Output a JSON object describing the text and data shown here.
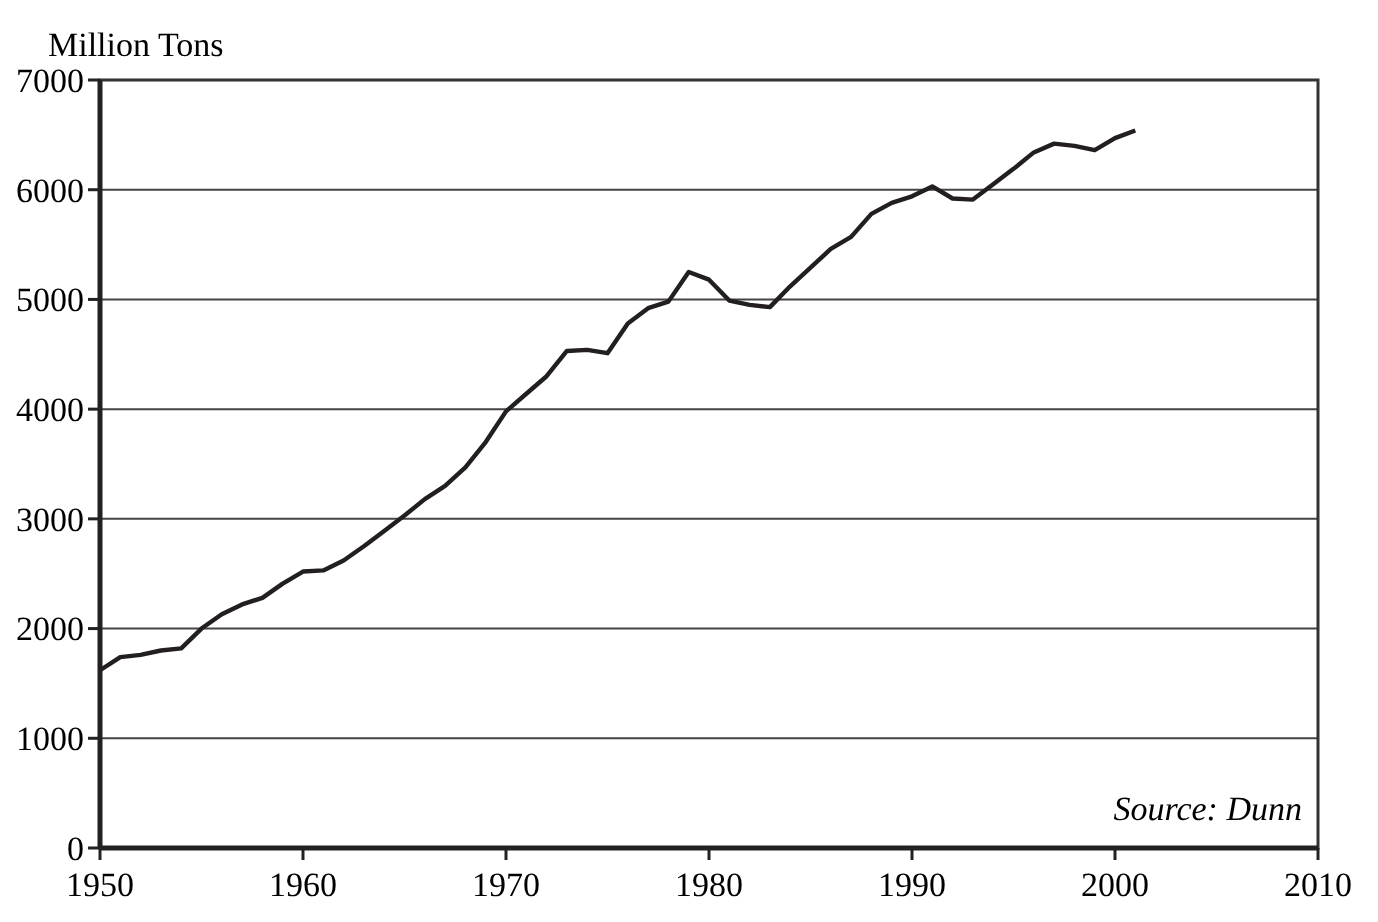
{
  "chart_data": {
    "type": "line",
    "ylabel": "Million Tons",
    "annotations": [
      "Source: Dunn"
    ],
    "x": [
      1950,
      1951,
      1952,
      1953,
      1954,
      1955,
      1956,
      1957,
      1958,
      1959,
      1960,
      1961,
      1962,
      1963,
      1964,
      1965,
      1966,
      1967,
      1968,
      1969,
      1970,
      1971,
      1972,
      1973,
      1974,
      1975,
      1976,
      1977,
      1978,
      1979,
      1980,
      1981,
      1982,
      1983,
      1984,
      1985,
      1986,
      1987,
      1988,
      1989,
      1990,
      1991,
      1992,
      1993,
      1994,
      1995,
      1996,
      1997,
      1998,
      1999,
      2000,
      2001
    ],
    "series": [
      {
        "color": "#231f20",
        "values": [
          1620,
          1740,
          1760,
          1800,
          1820,
          2000,
          2130,
          2220,
          2280,
          2410,
          2520,
          2530,
          2620,
          2750,
          2890,
          3030,
          3180,
          3300,
          3470,
          3700,
          3980,
          4140,
          4300,
          4530,
          4540,
          4510,
          4780,
          4920,
          4980,
          5250,
          5180,
          4990,
          4950,
          4930,
          5120,
          5290,
          5460,
          5570,
          5780,
          5880,
          5940,
          6030,
          5920,
          5910,
          6050,
          6190,
          6340,
          6420,
          6400,
          6360,
          6470,
          6540
        ]
      }
    ],
    "xlim": [
      1950,
      2010
    ],
    "xticks": [
      1950,
      1960,
      1970,
      1980,
      1990,
      2000,
      2010
    ],
    "ylim": [
      0,
      7000
    ],
    "yticks": [
      0,
      1000,
      2000,
      3000,
      4000,
      5000,
      6000,
      7000
    ],
    "grid": "y",
    "line_style": "solid",
    "marker": "none"
  }
}
